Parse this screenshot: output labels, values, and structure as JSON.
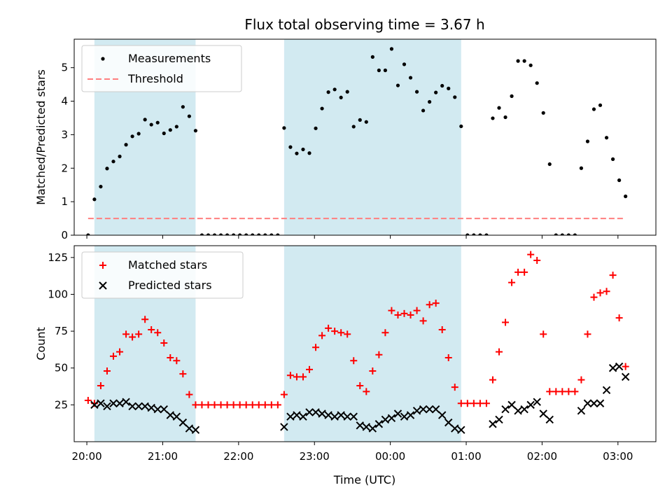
{
  "chart_data": [
    {
      "type": "scatter",
      "title": "Flux total observing time = 3.67 h",
      "xlabel": "",
      "ylabel": "Matched/Predicted stars",
      "xlim": [
        "19:50",
        "03:30"
      ],
      "ylim": [
        0,
        5.85
      ],
      "y_ticks": [
        "0",
        "1",
        "2",
        "3",
        "4",
        "5"
      ],
      "grid": false,
      "legend_position": "top-left",
      "shaded_regions": [
        [
          "20:06",
          "21:26"
        ],
        [
          "22:36",
          "00:56"
        ]
      ],
      "shade_color": "#add8e6",
      "series": [
        {
          "name": "Measurements",
          "marker": "dot",
          "color": "#000000",
          "points": [
            [
              "20:01",
              0
            ],
            [
              "20:06",
              1.07
            ],
            [
              "20:11",
              1.45
            ],
            [
              "20:16",
              1.99
            ],
            [
              "20:21",
              2.2
            ],
            [
              "20:26",
              2.35
            ],
            [
              "20:31",
              2.7
            ],
            [
              "20:36",
              2.95
            ],
            [
              "20:41",
              3.03
            ],
            [
              "20:46",
              3.45
            ],
            [
              "20:51",
              3.3
            ],
            [
              "20:56",
              3.36
            ],
            [
              "21:01",
              3.04
            ],
            [
              "21:06",
              3.14
            ],
            [
              "21:11",
              3.24
            ],
            [
              "21:16",
              3.83
            ],
            [
              "21:21",
              3.55
            ],
            [
              "21:26",
              3.12
            ],
            [
              "21:31",
              0
            ],
            [
              "21:36",
              0
            ],
            [
              "21:41",
              0
            ],
            [
              "21:46",
              0
            ],
            [
              "21:51",
              0
            ],
            [
              "21:56",
              0
            ],
            [
              "22:01",
              0
            ],
            [
              "22:06",
              0
            ],
            [
              "22:11",
              0
            ],
            [
              "22:16",
              0
            ],
            [
              "22:21",
              0
            ],
            [
              "22:26",
              0
            ],
            [
              "22:31",
              0
            ],
            [
              "22:36",
              3.2
            ],
            [
              "22:41",
              2.63
            ],
            [
              "22:46",
              2.44
            ],
            [
              "22:51",
              2.56
            ],
            [
              "22:56",
              2.45
            ],
            [
              "23:01",
              3.19
            ],
            [
              "23:06",
              3.78
            ],
            [
              "23:11",
              4.27
            ],
            [
              "23:16",
              4.35
            ],
            [
              "23:21",
              4.11
            ],
            [
              "23:26",
              4.28
            ],
            [
              "23:31",
              3.24
            ],
            [
              "23:36",
              3.44
            ],
            [
              "23:41",
              3.38
            ],
            [
              "23:46",
              5.32
            ],
            [
              "23:51",
              4.92
            ],
            [
              "23:56",
              4.92
            ],
            [
              "00:01",
              5.56
            ],
            [
              "00:06",
              4.47
            ],
            [
              "00:11",
              5.1
            ],
            [
              "00:16",
              4.7
            ],
            [
              "00:21",
              4.28
            ],
            [
              "00:26",
              3.72
            ],
            [
              "00:31",
              3.98
            ],
            [
              "00:36",
              4.26
            ],
            [
              "00:41",
              4.46
            ],
            [
              "00:46",
              4.38
            ],
            [
              "00:51",
              4.12
            ],
            [
              "00:56",
              3.25
            ],
            [
              "01:01",
              0
            ],
            [
              "01:06",
              0
            ],
            [
              "01:11",
              0
            ],
            [
              "01:16",
              0
            ],
            [
              "01:21",
              3.49
            ],
            [
              "01:26",
              3.8
            ],
            [
              "01:31",
              3.52
            ],
            [
              "01:36",
              4.15
            ],
            [
              "01:41",
              5.2
            ],
            [
              "01:46",
              5.2
            ],
            [
              "01:51",
              5.07
            ],
            [
              "01:56",
              4.54
            ],
            [
              "02:01",
              3.65
            ],
            [
              "02:06",
              2.12
            ],
            [
              "02:11",
              0
            ],
            [
              "02:16",
              0
            ],
            [
              "02:21",
              0
            ],
            [
              "02:26",
              0
            ],
            [
              "02:31",
              2.0
            ],
            [
              "02:36",
              2.8
            ],
            [
              "02:41",
              3.76
            ],
            [
              "02:46",
              3.88
            ],
            [
              "02:51",
              2.91
            ],
            [
              "02:56",
              2.27
            ],
            [
              "03:01",
              1.64
            ],
            [
              "03:06",
              1.16
            ]
          ]
        },
        {
          "name": "Threshold",
          "marker": "dashed-line",
          "color": "#ff7f7f",
          "points": [
            [
              "20:01",
              0.5
            ],
            [
              "03:06",
              0.5
            ]
          ]
        }
      ]
    },
    {
      "type": "scatter",
      "title": "",
      "xlabel": "Time (UTC)",
      "ylabel": "Count",
      "xlim": [
        "19:50",
        "03:30"
      ],
      "ylim": [
        0,
        133
      ],
      "x_ticks": [
        "20:00",
        "21:00",
        "22:00",
        "23:00",
        "00:00",
        "01:00",
        "02:00",
        "03:00"
      ],
      "y_ticks": [
        "25",
        "50",
        "75",
        "100",
        "125"
      ],
      "grid": false,
      "legend_position": "top-left",
      "shaded_regions": [
        [
          "20:06",
          "21:26"
        ],
        [
          "22:36",
          "00:56"
        ]
      ],
      "shade_color": "#add8e6",
      "series": [
        {
          "name": "Matched stars",
          "marker": "plus",
          "color": "#ff0000",
          "points": [
            [
              "20:01",
              28
            ],
            [
              "20:06",
              26
            ],
            [
              "20:11",
              38
            ],
            [
              "20:16",
              48
            ],
            [
              "20:21",
              58
            ],
            [
              "20:26",
              61
            ],
            [
              "20:31",
              73
            ],
            [
              "20:36",
              71
            ],
            [
              "20:41",
              73
            ],
            [
              "20:46",
              83
            ],
            [
              "20:51",
              76
            ],
            [
              "20:56",
              74
            ],
            [
              "21:01",
              67
            ],
            [
              "21:06",
              57
            ],
            [
              "21:11",
              55
            ],
            [
              "21:16",
              46
            ],
            [
              "21:21",
              32
            ],
            [
              "21:26",
              25
            ],
            [
              "21:31",
              25
            ],
            [
              "21:36",
              25
            ],
            [
              "21:41",
              25
            ],
            [
              "21:46",
              25
            ],
            [
              "21:51",
              25
            ],
            [
              "21:56",
              25
            ],
            [
              "22:01",
              25
            ],
            [
              "22:06",
              25
            ],
            [
              "22:11",
              25
            ],
            [
              "22:16",
              25
            ],
            [
              "22:21",
              25
            ],
            [
              "22:26",
              25
            ],
            [
              "22:31",
              25
            ],
            [
              "22:36",
              32
            ],
            [
              "22:41",
              45
            ],
            [
              "22:46",
              44
            ],
            [
              "22:51",
              44
            ],
            [
              "22:56",
              49
            ],
            [
              "23:01",
              64
            ],
            [
              "23:06",
              72
            ],
            [
              "23:11",
              77
            ],
            [
              "23:16",
              75
            ],
            [
              "23:21",
              74
            ],
            [
              "23:26",
              73
            ],
            [
              "23:31",
              55
            ],
            [
              "23:36",
              38
            ],
            [
              "23:41",
              34
            ],
            [
              "23:46",
              48
            ],
            [
              "23:51",
              59
            ],
            [
              "23:56",
              74
            ],
            [
              "00:01",
              89
            ],
            [
              "00:06",
              86
            ],
            [
              "00:11",
              87
            ],
            [
              "00:16",
              86
            ],
            [
              "00:21",
              89
            ],
            [
              "00:26",
              82
            ],
            [
              "00:31",
              93
            ],
            [
              "00:36",
              94
            ],
            [
              "00:41",
              76
            ],
            [
              "00:46",
              57
            ],
            [
              "00:51",
              37
            ],
            [
              "00:56",
              26
            ],
            [
              "01:01",
              26
            ],
            [
              "01:06",
              26
            ],
            [
              "01:11",
              26
            ],
            [
              "01:16",
              26
            ],
            [
              "01:21",
              42
            ],
            [
              "01:26",
              61
            ],
            [
              "01:31",
              81
            ],
            [
              "01:36",
              108
            ],
            [
              "01:41",
              115
            ],
            [
              "01:46",
              115
            ],
            [
              "01:51",
              127
            ],
            [
              "01:56",
              123
            ],
            [
              "02:01",
              73
            ],
            [
              "02:06",
              34
            ],
            [
              "02:11",
              34
            ],
            [
              "02:16",
              34
            ],
            [
              "02:21",
              34
            ],
            [
              "02:26",
              34
            ],
            [
              "02:31",
              42
            ],
            [
              "02:36",
              73
            ],
            [
              "02:41",
              98
            ],
            [
              "02:46",
              101
            ],
            [
              "02:51",
              102
            ],
            [
              "02:56",
              113
            ],
            [
              "03:01",
              84
            ],
            [
              "03:06",
              51
            ]
          ]
        },
        {
          "name": "Predicted stars",
          "marker": "x",
          "color": "#000000",
          "points": [
            [
              "20:06",
              25
            ],
            [
              "20:11",
              26
            ],
            [
              "20:16",
              24
            ],
            [
              "20:21",
              26
            ],
            [
              "20:26",
              26
            ],
            [
              "20:31",
              27
            ],
            [
              "20:36",
              24
            ],
            [
              "20:41",
              24
            ],
            [
              "20:46",
              24
            ],
            [
              "20:51",
              23
            ],
            [
              "20:56",
              22
            ],
            [
              "21:01",
              22
            ],
            [
              "21:06",
              18
            ],
            [
              "21:11",
              17
            ],
            [
              "21:16",
              13
            ],
            [
              "21:21",
              9
            ],
            [
              "21:26",
              8
            ],
            [
              "22:36",
              10
            ],
            [
              "22:41",
              17
            ],
            [
              "22:46",
              18
            ],
            [
              "22:51",
              17
            ],
            [
              "22:56",
              20
            ],
            [
              "23:01",
              20
            ],
            [
              "23:06",
              19
            ],
            [
              "23:11",
              18
            ],
            [
              "23:16",
              17
            ],
            [
              "23:21",
              18
            ],
            [
              "23:26",
              17
            ],
            [
              "23:31",
              17
            ],
            [
              "23:36",
              11
            ],
            [
              "23:41",
              10
            ],
            [
              "23:46",
              9
            ],
            [
              "23:51",
              12
            ],
            [
              "23:56",
              15
            ],
            [
              "00:01",
              16
            ],
            [
              "00:06",
              19
            ],
            [
              "00:11",
              17
            ],
            [
              "00:16",
              18
            ],
            [
              "00:21",
              21
            ],
            [
              "00:26",
              22
            ],
            [
              "00:31",
              22
            ],
            [
              "00:36",
              22
            ],
            [
              "00:41",
              18
            ],
            [
              "00:46",
              13
            ],
            [
              "00:51",
              9
            ],
            [
              "00:56",
              8
            ],
            [
              "01:21",
              12
            ],
            [
              "01:26",
              15
            ],
            [
              "01:31",
              22
            ],
            [
              "01:36",
              25
            ],
            [
              "01:41",
              21
            ],
            [
              "01:46",
              22
            ],
            [
              "01:51",
              25
            ],
            [
              "01:56",
              27
            ],
            [
              "02:01",
              19
            ],
            [
              "02:06",
              15
            ],
            [
              "02:31",
              21
            ],
            [
              "02:36",
              26
            ],
            [
              "02:41",
              26
            ],
            [
              "02:46",
              26
            ],
            [
              "02:51",
              35
            ],
            [
              "02:56",
              50
            ],
            [
              "03:01",
              51
            ],
            [
              "03:06",
              44
            ]
          ]
        }
      ]
    }
  ]
}
